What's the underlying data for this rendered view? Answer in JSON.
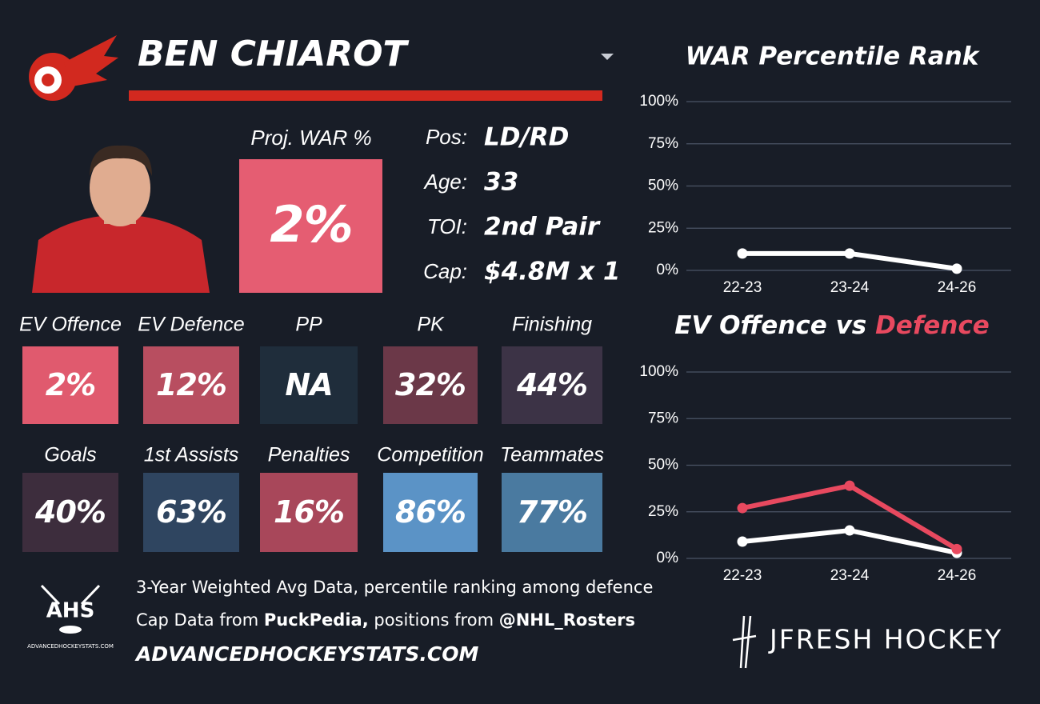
{
  "header": {
    "player": "BEN CHIAROT"
  },
  "proj_war": {
    "label": "Proj. WAR %",
    "value": "2%",
    "color": "#e55d72"
  },
  "info": [
    {
      "label": "Pos:",
      "value": "LD/RD"
    },
    {
      "label": "Age:",
      "value": "33"
    },
    {
      "label": "TOI:",
      "value": "2nd Pair"
    },
    {
      "label": "Cap:",
      "value": "$4.8M x 1"
    }
  ],
  "tiles": [
    {
      "label": "EV Offence",
      "value": "2%",
      "color": "#e05a6e"
    },
    {
      "label": "EV Defence",
      "value": "12%",
      "color": "#b84e60"
    },
    {
      "label": "PP",
      "value": "NA",
      "color": "#1f2d3b"
    },
    {
      "label": "PK",
      "value": "32%",
      "color": "#6b3848"
    },
    {
      "label": "Finishing",
      "value": "44%",
      "color": "#3c3346"
    },
    {
      "label": "Goals",
      "value": "40%",
      "color": "#3d2d3d"
    },
    {
      "label": "1st Assists",
      "value": "63%",
      "color": "#2f4560"
    },
    {
      "label": "Penalties",
      "value": "16%",
      "color": "#a8475a"
    },
    {
      "label": "Competition",
      "value": "86%",
      "color": "#5b93c6"
    },
    {
      "label": "Teammates",
      "value": "77%",
      "color": "#4a7aa0"
    }
  ],
  "footer": {
    "line1": "3-Year Weighted Avg Data, percentile ranking among defence",
    "line2": [
      "Cap Data from ",
      "PuckPedia,",
      " positions from ",
      "@NHL_Rosters"
    ],
    "site": "ADVANCEDHOCKEYSTATS.COM"
  },
  "logos": {
    "ahs": "AHS",
    "ahs_sub": "ADVANCEDHOCKEYSTATS.COM",
    "jfresh": "JFRESH HOCKEY"
  },
  "chart_data": [
    {
      "type": "line",
      "title": "WAR Percentile Rank",
      "categories": [
        "22-23",
        "23-24",
        "24-26"
      ],
      "series": [
        {
          "color": "#ffffff",
          "values": [
            10,
            10,
            1
          ]
        }
      ],
      "ylim": [
        0,
        100
      ],
      "yticks": [
        {
          "value": 0,
          "label": "0%"
        },
        {
          "value": 25,
          "label": "25%"
        },
        {
          "value": 50,
          "label": "50%"
        },
        {
          "value": 75,
          "label": "75%"
        },
        {
          "value": 100,
          "label": "100%"
        }
      ],
      "grid": true
    },
    {
      "type": "line",
      "title_parts": [
        {
          "text": "EV Offence vs ",
          "color": "#ffffff"
        },
        {
          "text": "Defence",
          "color": "#e8495f"
        }
      ],
      "categories": [
        "22-23",
        "23-24",
        "24-26"
      ],
      "series": [
        {
          "color": "#ffffff",
          "values": [
            9,
            15,
            3
          ]
        },
        {
          "color": "#e8495f",
          "values": [
            27,
            39,
            5
          ]
        }
      ],
      "ylim": [
        0,
        100
      ],
      "yticks": [
        {
          "value": 0,
          "label": "0%"
        },
        {
          "value": 25,
          "label": "25%"
        },
        {
          "value": 50,
          "label": "50%"
        },
        {
          "value": 75,
          "label": "75%"
        },
        {
          "value": 100,
          "label": "100%"
        }
      ],
      "grid": true
    }
  ]
}
